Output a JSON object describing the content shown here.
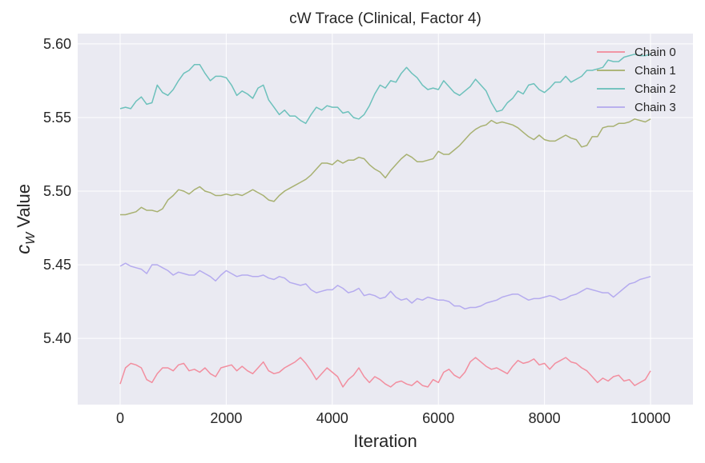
{
  "chart_data": {
    "type": "line",
    "title": "cW Trace (Clinical, Factor 4)",
    "xlabel": "Iteration",
    "ylabel_main": "c",
    "ylabel_sub": "W",
    "ylabel_suffix": " Value",
    "xlim": [
      -800,
      10800
    ],
    "ylim": [
      5.355,
      5.607
    ],
    "xticks": [
      0,
      2000,
      4000,
      6000,
      8000,
      10000
    ],
    "xtick_labels": [
      "0",
      "2000",
      "4000",
      "6000",
      "8000",
      "10000"
    ],
    "yticks": [
      5.4,
      5.45,
      5.5,
      5.55,
      5.6
    ],
    "ytick_labels": [
      "5.40",
      "5.45",
      "5.50",
      "5.55",
      "5.60"
    ],
    "grid": true,
    "legend_position": "top-right",
    "series": [
      {
        "name": "Chain 0",
        "color": "#f2899a",
        "x": [
          0,
          100,
          200,
          300,
          400,
          500,
          600,
          700,
          800,
          900,
          1000,
          1100,
          1200,
          1300,
          1400,
          1500,
          1600,
          1700,
          1800,
          1900,
          2000,
          2100,
          2200,
          2300,
          2400,
          2500,
          2600,
          2700,
          2800,
          2900,
          3000,
          3100,
          3200,
          3300,
          3400,
          3500,
          3600,
          3700,
          3800,
          3900,
          4000,
          4100,
          4200,
          4300,
          4400,
          4500,
          4600,
          4700,
          4800,
          4900,
          5000,
          5100,
          5200,
          5300,
          5400,
          5500,
          5600,
          5700,
          5800,
          5900,
          6000,
          6100,
          6200,
          6300,
          6400,
          6500,
          6600,
          6700,
          6800,
          6900,
          7000,
          7100,
          7200,
          7300,
          7400,
          7500,
          7600,
          7700,
          7800,
          7900,
          8000,
          8100,
          8200,
          8300,
          8400,
          8500,
          8600,
          8700,
          8800,
          8900,
          9000,
          9100,
          9200,
          9300,
          9400,
          9500,
          9600,
          9700,
          9800,
          9900,
          10000
        ],
        "values": [
          5.369,
          5.38,
          5.383,
          5.382,
          5.38,
          5.372,
          5.37,
          5.376,
          5.38,
          5.38,
          5.378,
          5.382,
          5.383,
          5.378,
          5.379,
          5.377,
          5.38,
          5.376,
          5.374,
          5.38,
          5.381,
          5.382,
          5.378,
          5.381,
          5.378,
          5.376,
          5.38,
          5.384,
          5.378,
          5.376,
          5.377,
          5.38,
          5.382,
          5.384,
          5.387,
          5.383,
          5.378,
          5.372,
          5.376,
          5.38,
          5.377,
          5.374,
          5.367,
          5.372,
          5.375,
          5.38,
          5.374,
          5.37,
          5.374,
          5.372,
          5.369,
          5.367,
          5.37,
          5.371,
          5.369,
          5.368,
          5.371,
          5.368,
          5.367,
          5.372,
          5.37,
          5.377,
          5.379,
          5.375,
          5.373,
          5.377,
          5.384,
          5.387,
          5.384,
          5.381,
          5.379,
          5.38,
          5.378,
          5.376,
          5.381,
          5.385,
          5.383,
          5.384,
          5.386,
          5.382,
          5.383,
          5.379,
          5.383,
          5.385,
          5.387,
          5.384,
          5.383,
          5.38,
          5.378,
          5.374,
          5.37,
          5.373,
          5.371,
          5.374,
          5.375,
          5.371,
          5.372,
          5.368,
          5.37,
          5.372,
          5.378
        ]
      },
      {
        "name": "Chain 1",
        "color": "#a4ae6a",
        "x": [
          0,
          100,
          200,
          300,
          400,
          500,
          600,
          700,
          800,
          900,
          1000,
          1100,
          1200,
          1300,
          1400,
          1500,
          1600,
          1700,
          1800,
          1900,
          2000,
          2100,
          2200,
          2300,
          2400,
          2500,
          2600,
          2700,
          2800,
          2900,
          3000,
          3100,
          3200,
          3300,
          3400,
          3500,
          3600,
          3700,
          3800,
          3900,
          4000,
          4100,
          4200,
          4300,
          4400,
          4500,
          4600,
          4700,
          4800,
          4900,
          5000,
          5100,
          5200,
          5300,
          5400,
          5500,
          5600,
          5700,
          5800,
          5900,
          6000,
          6100,
          6200,
          6300,
          6400,
          6500,
          6600,
          6700,
          6800,
          6900,
          7000,
          7100,
          7200,
          7300,
          7400,
          7500,
          7600,
          7700,
          7800,
          7900,
          8000,
          8100,
          8200,
          8300,
          8400,
          8500,
          8600,
          8700,
          8800,
          8900,
          9000,
          9100,
          9200,
          9300,
          9400,
          9500,
          9600,
          9700,
          9800,
          9900,
          10000
        ],
        "values": [
          5.484,
          5.484,
          5.485,
          5.486,
          5.489,
          5.487,
          5.487,
          5.486,
          5.488,
          5.494,
          5.497,
          5.501,
          5.5,
          5.498,
          5.501,
          5.503,
          5.5,
          5.499,
          5.497,
          5.497,
          5.498,
          5.497,
          5.498,
          5.497,
          5.499,
          5.501,
          5.499,
          5.497,
          5.494,
          5.493,
          5.497,
          5.5,
          5.502,
          5.504,
          5.506,
          5.508,
          5.511,
          5.515,
          5.519,
          5.519,
          5.518,
          5.521,
          5.519,
          5.521,
          5.521,
          5.523,
          5.522,
          5.518,
          5.515,
          5.513,
          5.509,
          5.514,
          5.518,
          5.522,
          5.525,
          5.523,
          5.52,
          5.52,
          5.521,
          5.522,
          5.527,
          5.525,
          5.525,
          5.528,
          5.531,
          5.535,
          5.539,
          5.542,
          5.544,
          5.545,
          5.548,
          5.546,
          5.547,
          5.546,
          5.545,
          5.543,
          5.54,
          5.537,
          5.535,
          5.538,
          5.535,
          5.534,
          5.534,
          5.536,
          5.538,
          5.536,
          5.535,
          5.53,
          5.531,
          5.537,
          5.537,
          5.543,
          5.544,
          5.544,
          5.546,
          5.546,
          5.547,
          5.549,
          5.548,
          5.547,
          5.549
        ]
      },
      {
        "name": "Chain 2",
        "color": "#66bfb8",
        "x": [
          0,
          100,
          200,
          300,
          400,
          500,
          600,
          700,
          800,
          900,
          1000,
          1100,
          1200,
          1300,
          1400,
          1500,
          1600,
          1700,
          1800,
          1900,
          2000,
          2100,
          2200,
          2300,
          2400,
          2500,
          2600,
          2700,
          2800,
          2900,
          3000,
          3100,
          3200,
          3300,
          3400,
          3500,
          3600,
          3700,
          3800,
          3900,
          4000,
          4100,
          4200,
          4300,
          4400,
          4500,
          4600,
          4700,
          4800,
          4900,
          5000,
          5100,
          5200,
          5300,
          5400,
          5500,
          5600,
          5700,
          5800,
          5900,
          6000,
          6100,
          6200,
          6300,
          6400,
          6500,
          6600,
          6700,
          6800,
          6900,
          7000,
          7100,
          7200,
          7300,
          7400,
          7500,
          7600,
          7700,
          7800,
          7900,
          8000,
          8100,
          8200,
          8300,
          8400,
          8500,
          8600,
          8700,
          8800,
          8900,
          9000,
          9100,
          9200,
          9300,
          9400,
          9500,
          9600,
          9700,
          9800,
          9900,
          10000
        ],
        "values": [
          5.556,
          5.557,
          5.556,
          5.561,
          5.564,
          5.559,
          5.56,
          5.572,
          5.567,
          5.565,
          5.569,
          5.575,
          5.58,
          5.582,
          5.586,
          5.586,
          5.58,
          5.575,
          5.578,
          5.578,
          5.577,
          5.572,
          5.565,
          5.568,
          5.566,
          5.563,
          5.57,
          5.572,
          5.562,
          5.557,
          5.552,
          5.555,
          5.551,
          5.551,
          5.548,
          5.546,
          5.552,
          5.557,
          5.555,
          5.558,
          5.557,
          5.557,
          5.553,
          5.554,
          5.55,
          5.549,
          5.552,
          5.558,
          5.566,
          5.572,
          5.57,
          5.575,
          5.574,
          5.58,
          5.584,
          5.58,
          5.577,
          5.572,
          5.569,
          5.57,
          5.569,
          5.575,
          5.571,
          5.567,
          5.565,
          5.568,
          5.571,
          5.576,
          5.572,
          5.568,
          5.56,
          5.554,
          5.555,
          5.56,
          5.563,
          5.568,
          5.566,
          5.572,
          5.573,
          5.569,
          5.567,
          5.57,
          5.574,
          5.574,
          5.578,
          5.574,
          5.576,
          5.578,
          5.582,
          5.582,
          5.583,
          5.584,
          5.589,
          5.588,
          5.588,
          5.591,
          5.592,
          5.593,
          5.592,
          5.592,
          5.593
        ]
      },
      {
        "name": "Chain 3",
        "color": "#b2a8ee",
        "x": [
          0,
          100,
          200,
          300,
          400,
          500,
          600,
          700,
          800,
          900,
          1000,
          1100,
          1200,
          1300,
          1400,
          1500,
          1600,
          1700,
          1800,
          1900,
          2000,
          2100,
          2200,
          2300,
          2400,
          2500,
          2600,
          2700,
          2800,
          2900,
          3000,
          3100,
          3200,
          3300,
          3400,
          3500,
          3600,
          3700,
          3800,
          3900,
          4000,
          4100,
          4200,
          4300,
          4400,
          4500,
          4600,
          4700,
          4800,
          4900,
          5000,
          5100,
          5200,
          5300,
          5400,
          5500,
          5600,
          5700,
          5800,
          5900,
          6000,
          6100,
          6200,
          6300,
          6400,
          6500,
          6600,
          6700,
          6800,
          6900,
          7000,
          7100,
          7200,
          7300,
          7400,
          7500,
          7600,
          7700,
          7800,
          7900,
          8000,
          8100,
          8200,
          8300,
          8400,
          8500,
          8600,
          8700,
          8800,
          8900,
          9000,
          9100,
          9200,
          9300,
          9400,
          9500,
          9600,
          9700,
          9800,
          9900,
          10000
        ],
        "values": [
          5.449,
          5.451,
          5.449,
          5.448,
          5.447,
          5.444,
          5.45,
          5.45,
          5.448,
          5.446,
          5.443,
          5.445,
          5.444,
          5.443,
          5.443,
          5.446,
          5.444,
          5.442,
          5.439,
          5.443,
          5.446,
          5.444,
          5.442,
          5.443,
          5.443,
          5.442,
          5.442,
          5.443,
          5.441,
          5.44,
          5.442,
          5.441,
          5.438,
          5.437,
          5.436,
          5.437,
          5.433,
          5.431,
          5.432,
          5.433,
          5.433,
          5.436,
          5.434,
          5.431,
          5.432,
          5.434,
          5.429,
          5.43,
          5.429,
          5.427,
          5.428,
          5.432,
          5.428,
          5.426,
          5.427,
          5.424,
          5.427,
          5.426,
          5.428,
          5.427,
          5.426,
          5.426,
          5.425,
          5.422,
          5.422,
          5.42,
          5.421,
          5.421,
          5.422,
          5.424,
          5.425,
          5.426,
          5.428,
          5.429,
          5.43,
          5.43,
          5.428,
          5.426,
          5.427,
          5.427,
          5.428,
          5.429,
          5.428,
          5.426,
          5.427,
          5.429,
          5.43,
          5.432,
          5.434,
          5.433,
          5.432,
          5.431,
          5.431,
          5.428,
          5.431,
          5.434,
          5.437,
          5.438,
          5.44,
          5.441,
          5.442
        ]
      }
    ]
  }
}
